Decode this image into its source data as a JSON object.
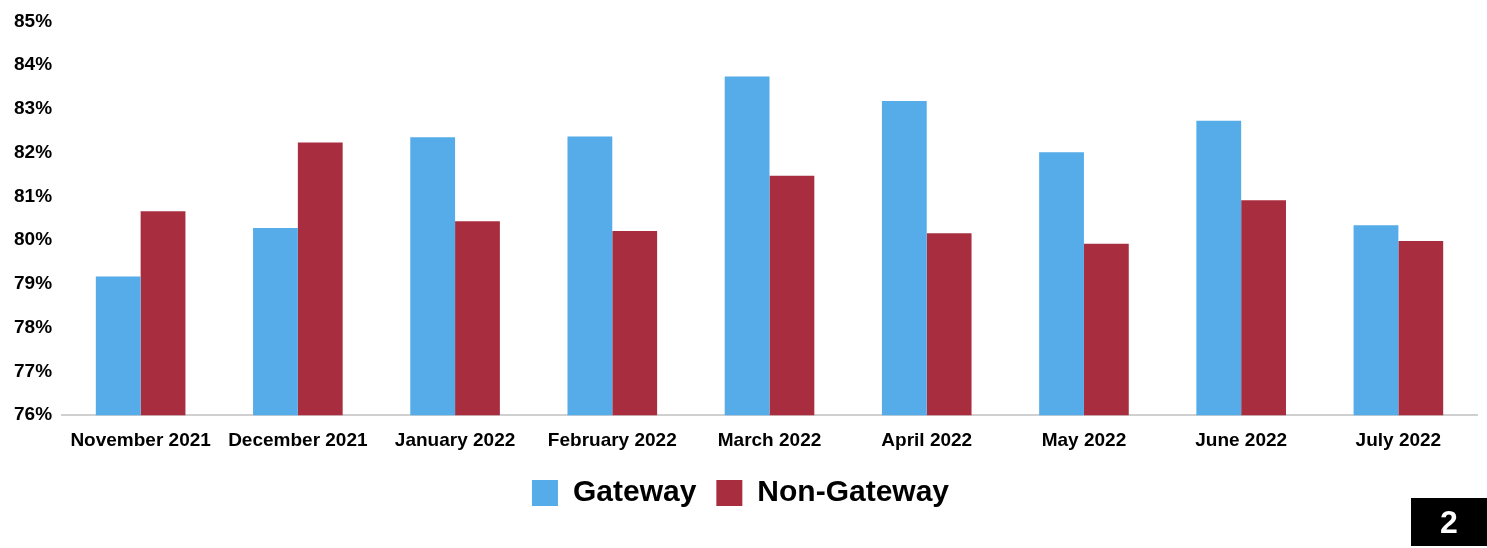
{
  "chart_data": {
    "type": "bar",
    "categories": [
      "November 2021",
      "December 2021",
      "January 2022",
      "February 2022",
      "March 2022",
      "April 2022",
      "May 2022",
      "June 2022",
      "July 2022"
    ],
    "series": [
      {
        "name": "Gateway",
        "color": "#55ace9",
        "values": [
          79.17,
          80.28,
          82.35,
          82.37,
          83.74,
          83.18,
          82.01,
          82.73,
          80.34
        ]
      },
      {
        "name": "Non-Gateway",
        "color": "#a82e3f",
        "values": [
          80.66,
          82.23,
          80.43,
          80.21,
          81.47,
          80.16,
          79.92,
          80.91,
          79.98
        ]
      }
    ],
    "ylim": [
      76,
      85
    ],
    "yticks": [
      {
        "value": 76,
        "label": "76%"
      },
      {
        "value": 77,
        "label": "77%"
      },
      {
        "value": 78,
        "label": "78%"
      },
      {
        "value": 79,
        "label": "79%"
      },
      {
        "value": 80,
        "label": "80%"
      },
      {
        "value": 81,
        "label": "81%"
      },
      {
        "value": 82,
        "label": "82%"
      },
      {
        "value": 83,
        "label": "83%"
      },
      {
        "value": 84,
        "label": "84%"
      },
      {
        "value": 85,
        "label": "85%"
      }
    ],
    "grid": false,
    "legend": "bottom",
    "annotations": [
      "2"
    ]
  }
}
